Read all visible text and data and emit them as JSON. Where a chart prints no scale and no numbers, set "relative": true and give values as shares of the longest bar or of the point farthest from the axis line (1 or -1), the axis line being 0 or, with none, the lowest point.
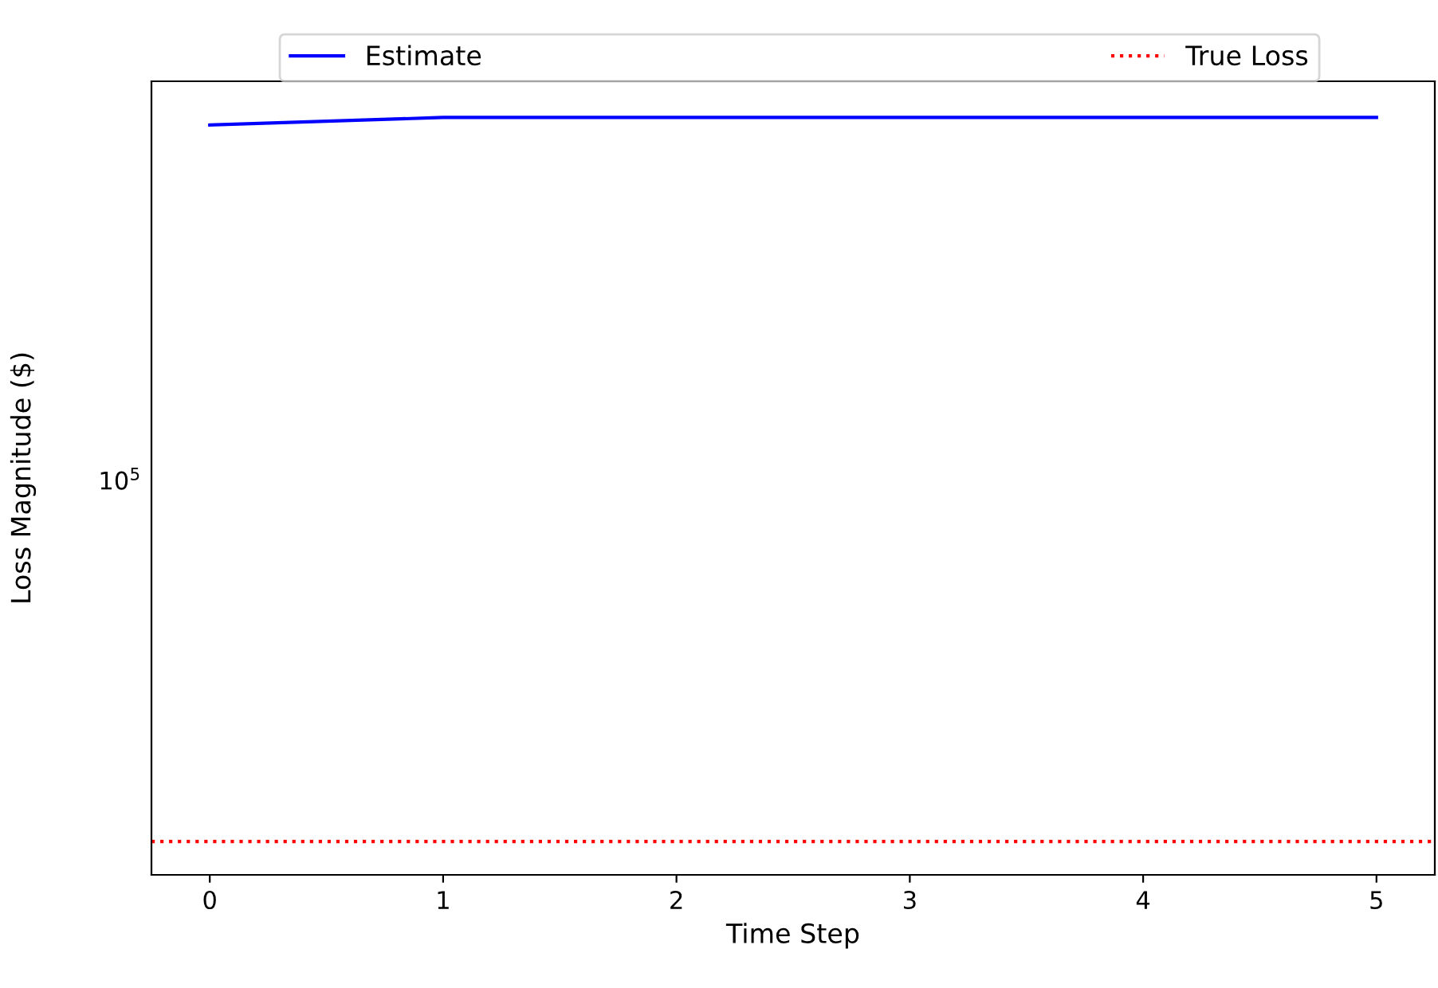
{
  "chart_data": {
    "type": "line",
    "xlabel": "Time Step",
    "ylabel": "Loss Magnitude ($)",
    "x": [
      0,
      1,
      2,
      3,
      4,
      5
    ],
    "relative": true,
    "series": [
      {
        "name": "Estimate",
        "color": "#0000ff",
        "values": [
          0.99,
          1,
          1,
          1,
          1,
          1
        ]
      }
    ],
    "ref_lines": [
      {
        "axis": "y",
        "value": 0.044,
        "label": "True Loss",
        "color": "#ff0000",
        "line_style": "dotted"
      }
    ],
    "annotations": [
      "10$^{5}$"
    ],
    "xlim": [
      -0.25,
      5.25
    ],
    "xticks": [
      0,
      1,
      2,
      3,
      4,
      5
    ],
    "legend": "top",
    "grid": false,
    "marker": "none",
    "line_style": "solid"
  }
}
